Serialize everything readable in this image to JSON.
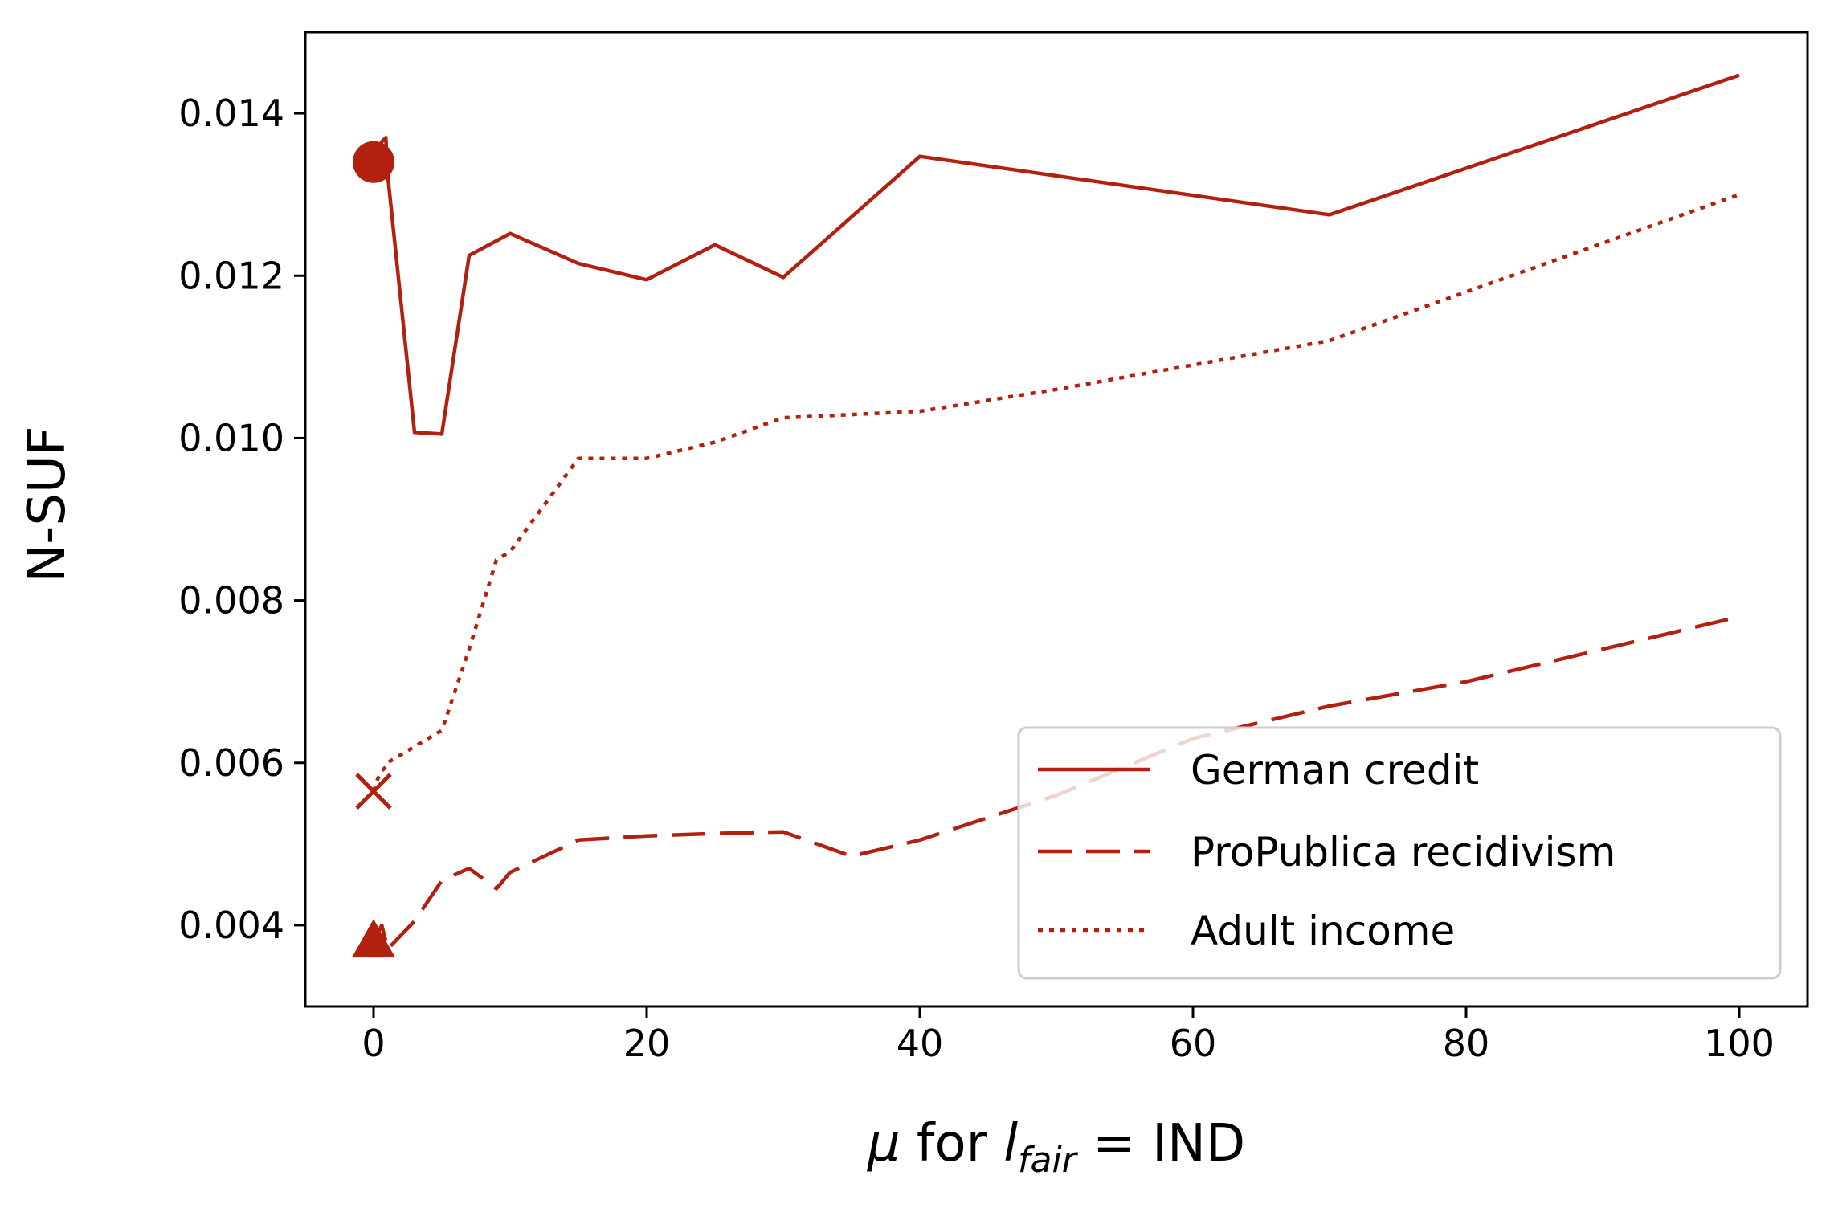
{
  "chart_data": {
    "type": "line",
    "title": "",
    "xlabel": {
      "mu": "μ",
      "middle": " for ",
      "l": "l",
      "sub": "fair",
      "equals": " = ",
      "value": "IND"
    },
    "ylabel": "N-SUF",
    "xlim": [
      -5,
      105
    ],
    "ylim": [
      0.003,
      0.015
    ],
    "xticks": [
      0,
      20,
      40,
      60,
      80,
      100
    ],
    "xtick_labels": [
      "0",
      "20",
      "40",
      "60",
      "80",
      "100"
    ],
    "yticks": [
      0.004,
      0.006,
      0.008,
      0.01,
      0.012,
      0.014
    ],
    "ytick_labels": [
      "0.004",
      "0.006",
      "0.008",
      "0.010",
      "0.012",
      "0.014"
    ],
    "grid": false,
    "legend_position": "lower-right",
    "color": "#b22010",
    "series": [
      {
        "name": "German credit",
        "style": "solid",
        "marker": "circle",
        "x": [
          0,
          0.3,
          0.6,
          0.9,
          1,
          3,
          5,
          7,
          10,
          15,
          20,
          25,
          30,
          40,
          70,
          100
        ],
        "y": [
          0.0134,
          0.0134,
          0.01365,
          0.0137,
          0.0133,
          0.01007,
          0.01005,
          0.01225,
          0.01252,
          0.01215,
          0.01195,
          0.01238,
          0.01198,
          0.01347,
          0.01275,
          0.01447
        ]
      },
      {
        "name": "ProPublica recidivism",
        "style": "dashed",
        "marker": "triangle",
        "x": [
          0,
          0.3,
          0.6,
          0.9,
          1,
          3,
          5,
          7,
          9,
          10,
          15,
          20,
          25,
          30,
          35,
          40,
          50,
          60,
          70,
          80,
          100
        ],
        "y": [
          0.0038,
          0.0039,
          0.004,
          0.0038,
          0.0037,
          0.00405,
          0.00455,
          0.0047,
          0.00445,
          0.00465,
          0.00505,
          0.0051,
          0.00513,
          0.00515,
          0.00485,
          0.00505,
          0.0056,
          0.0063,
          0.0067,
          0.007,
          0.0078
        ]
      },
      {
        "name": "Adult income",
        "style": "dotted",
        "marker": "x",
        "x": [
          0,
          0.3,
          0.6,
          0.9,
          1,
          3,
          5,
          7,
          9,
          10,
          15,
          20,
          25,
          30,
          40,
          50,
          60,
          70,
          100
        ],
        "y": [
          0.00565,
          0.0058,
          0.0059,
          0.00595,
          0.006,
          0.0062,
          0.0064,
          0.0074,
          0.0085,
          0.0086,
          0.00975,
          0.00975,
          0.00995,
          0.01025,
          0.01033,
          0.0106,
          0.0109,
          0.0112,
          0.013
        ]
      }
    ]
  }
}
